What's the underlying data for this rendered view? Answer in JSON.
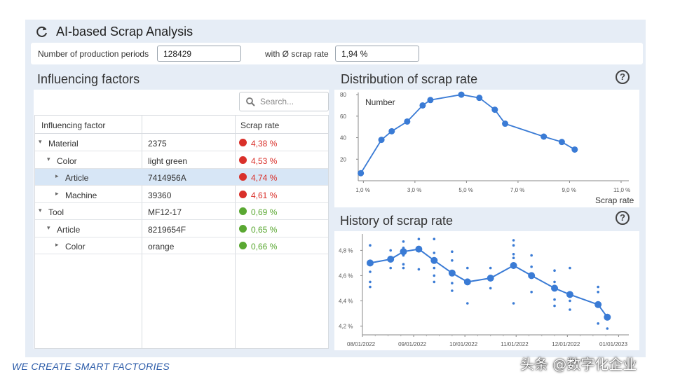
{
  "app": {
    "title": "AI-based Scrap Analysis",
    "icon": "refresh-icon"
  },
  "params": {
    "periods_label": "Number of production periods",
    "periods_value": "128429",
    "avg_label": "with Ø scrap rate",
    "avg_value": "1,94 %"
  },
  "factors": {
    "title": "Influencing factors",
    "search_placeholder": "Search...",
    "col_factor": "Influencing factor",
    "col_rate": "Scrap rate",
    "rows": [
      {
        "caret": "▾",
        "name": "Material",
        "value": "2375",
        "rate": "4,38 %",
        "status": "red"
      },
      {
        "caret": "▾",
        "name": "Color",
        "value": "light green",
        "rate": "4,53 %",
        "status": "red"
      },
      {
        "caret": "▸",
        "name": "Article",
        "value": "7414956A",
        "rate": "4,74 %",
        "status": "red",
        "selected": true
      },
      {
        "caret": "▸",
        "name": "Machine",
        "value": "39360",
        "rate": "4,61 %",
        "status": "red"
      },
      {
        "caret": "▾",
        "name": "Tool",
        "value": "MF12-17",
        "rate": "0,69 %",
        "status": "green"
      },
      {
        "caret": "▾",
        "name": "Article",
        "value": "8219654F",
        "rate": "0,65 %",
        "status": "green"
      },
      {
        "caret": "▸",
        "name": "Color",
        "value": "orange",
        "rate": "0,66 %",
        "status": "green"
      }
    ]
  },
  "colors": {
    "red": "#d9302a",
    "green": "#5aa832",
    "line": "#3a7bd5",
    "accent": "#2a5aa8"
  },
  "distribution": {
    "title": "Distribution of scrap rate",
    "help_icon": "help-icon",
    "help": "?",
    "chart_data": {
      "type": "line",
      "ylabel": "Number",
      "xlabel": "Scrap rate",
      "x_ticks": [
        "1,0 %",
        "3,0 %",
        "5,0 %",
        "7,0 %",
        "9,0 %",
        "11,0 %"
      ],
      "y_ticks": [
        "20",
        "40",
        "60",
        "80"
      ],
      "xlim": [
        0.8,
        11.3
      ],
      "ylim": [
        0,
        82
      ],
      "x": [
        0.9,
        1.7,
        2.1,
        2.7,
        3.3,
        3.6,
        4.8,
        5.5,
        6.1,
        6.5,
        8.0,
        8.7,
        9.2
      ],
      "y": [
        7,
        38,
        46,
        55,
        70,
        75,
        80,
        77,
        66,
        53,
        41,
        36,
        29
      ]
    }
  },
  "history": {
    "title": "History of scrap rate",
    "help_icon": "help-icon",
    "help": "?",
    "chart_data": {
      "type": "scatter",
      "x_ticks": [
        "08/01/2022",
        "09/01/2022",
        "10/01/2022",
        "11/01/2022",
        "12/01/2022",
        "01/01/2023"
      ],
      "y_ticks": [
        "4,2 %",
        "4,4 %",
        "4,6 %",
        "4,8 %"
      ],
      "xlim": [
        0,
        5.2
      ],
      "ylim": [
        4.13,
        4.93
      ],
      "trend": {
        "x": [
          0.15,
          0.55,
          0.8,
          1.1,
          1.4,
          1.75,
          2.05,
          2.5,
          2.95,
          3.3,
          3.75,
          4.05,
          4.6
        ],
        "y": [
          4.7,
          4.73,
          4.79,
          4.81,
          4.72,
          4.62,
          4.55,
          4.58,
          4.68,
          4.6,
          4.5,
          4.45,
          4.37
        ]
      },
      "last_point": {
        "x": 4.78,
        "y": 4.27
      },
      "scatter": [
        {
          "x": 0.15,
          "y": 4.84
        },
        {
          "x": 0.15,
          "y": 4.63
        },
        {
          "x": 0.15,
          "y": 4.55
        },
        {
          "x": 0.15,
          "y": 4.51
        },
        {
          "x": 0.55,
          "y": 4.8
        },
        {
          "x": 0.55,
          "y": 4.66
        },
        {
          "x": 0.8,
          "y": 4.87
        },
        {
          "x": 0.8,
          "y": 4.82
        },
        {
          "x": 0.8,
          "y": 4.76
        },
        {
          "x": 0.8,
          "y": 4.69
        },
        {
          "x": 0.8,
          "y": 4.66
        },
        {
          "x": 1.1,
          "y": 4.89
        },
        {
          "x": 1.1,
          "y": 4.65
        },
        {
          "x": 1.4,
          "y": 4.89
        },
        {
          "x": 1.4,
          "y": 4.78
        },
        {
          "x": 1.4,
          "y": 4.66
        },
        {
          "x": 1.4,
          "y": 4.6
        },
        {
          "x": 1.4,
          "y": 4.55
        },
        {
          "x": 1.75,
          "y": 4.79
        },
        {
          "x": 1.75,
          "y": 4.72
        },
        {
          "x": 1.75,
          "y": 4.54
        },
        {
          "x": 1.75,
          "y": 4.48
        },
        {
          "x": 2.05,
          "y": 4.66
        },
        {
          "x": 2.05,
          "y": 4.38
        },
        {
          "x": 2.5,
          "y": 4.66
        },
        {
          "x": 2.5,
          "y": 4.5
        },
        {
          "x": 2.95,
          "y": 4.88
        },
        {
          "x": 2.95,
          "y": 4.84
        },
        {
          "x": 2.95,
          "y": 4.77
        },
        {
          "x": 2.95,
          "y": 4.74
        },
        {
          "x": 2.95,
          "y": 4.67
        },
        {
          "x": 2.95,
          "y": 4.38
        },
        {
          "x": 3.3,
          "y": 4.76
        },
        {
          "x": 3.3,
          "y": 4.67
        },
        {
          "x": 3.3,
          "y": 4.47
        },
        {
          "x": 3.75,
          "y": 4.64
        },
        {
          "x": 3.75,
          "y": 4.55
        },
        {
          "x": 3.75,
          "y": 4.41
        },
        {
          "x": 3.75,
          "y": 4.36
        },
        {
          "x": 4.05,
          "y": 4.66
        },
        {
          "x": 4.05,
          "y": 4.4
        },
        {
          "x": 4.05,
          "y": 4.33
        },
        {
          "x": 4.6,
          "y": 4.51
        },
        {
          "x": 4.6,
          "y": 4.47
        },
        {
          "x": 4.6,
          "y": 4.22
        },
        {
          "x": 4.78,
          "y": 4.18
        }
      ]
    }
  },
  "footer": {
    "tagline": "WE CREATE SMART FACTORIES",
    "watermark": "头条 @数字化企业"
  }
}
